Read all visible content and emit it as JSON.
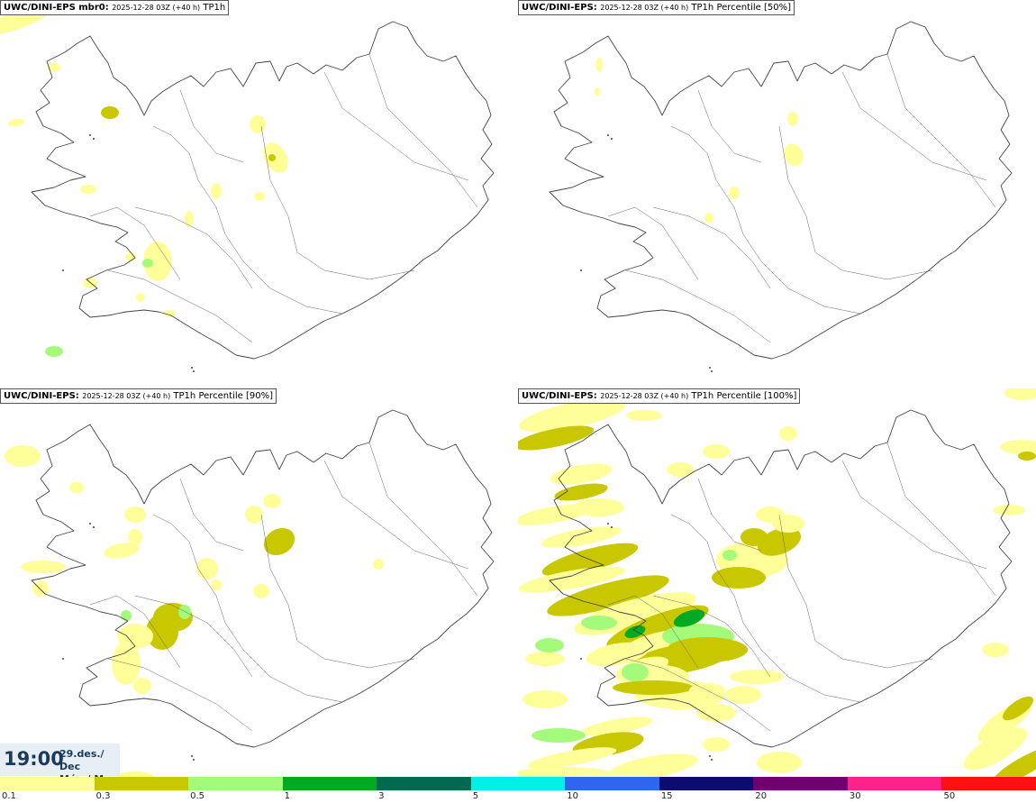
{
  "panels": [
    {
      "model": "UWC/DINI-EPS mbr0",
      "sep": ": ",
      "date": "2025-12-28 03Z (+40 h)",
      "product": "TP1h",
      "intensity": 1
    },
    {
      "model": "UWC/DINI-EPS",
      "sep": ": ",
      "date": "2025-12-28 03Z (+40 h)",
      "product": "TP1h Percentile [50%]",
      "intensity": 0
    },
    {
      "model": "UWC/DINI-EPS",
      "sep": ": ",
      "date": "2025-12-28 03Z (+40 h)",
      "product": "TP1h Percentile [90%]",
      "intensity": 2
    },
    {
      "model": "UWC/DINI-EPS",
      "sep": ": ",
      "date": "2025-12-28 03Z (+40 h)",
      "product": "TP1h Percentile [100%]",
      "intensity": 3
    }
  ],
  "valid_time": {
    "time": "19:00",
    "date_line": "29.des./ Dec",
    "day_line": "Mán./ Mon"
  },
  "legend": {
    "ticks": [
      "0.1",
      "0.3",
      "0.5",
      "1",
      "3",
      "5",
      "10",
      "15",
      "20",
      "30",
      "50"
    ],
    "colors": [
      "#ffff9a",
      "#c9c800",
      "#a4fa7a",
      "#00aa22",
      "#006a50",
      "#00f0e8",
      "#2e66f0",
      "#0b0b70",
      "#700070",
      "#ff2288",
      "#ff1010"
    ]
  }
}
